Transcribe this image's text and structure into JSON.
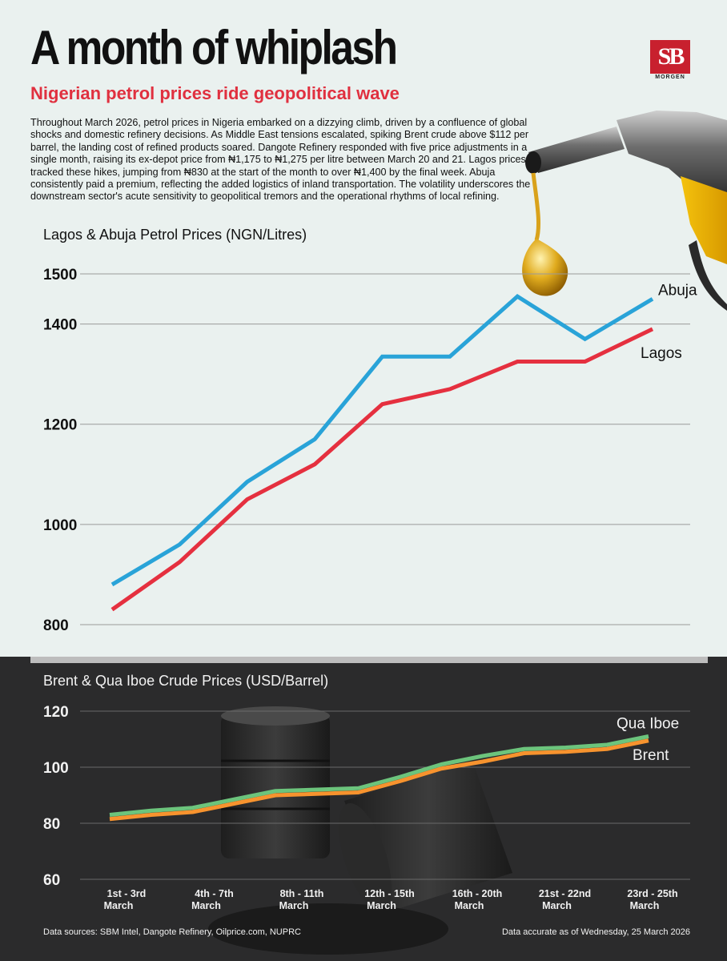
{
  "headline": "A month of whiplash",
  "subheadline": "Nigerian petrol prices ride geopolitical wave",
  "logo": {
    "initials": "SB",
    "sub": "MORGEN"
  },
  "intro": "Throughout March 2026, petrol prices in Nigeria embarked on a dizzying climb, driven by a confluence of global shocks and domestic refinery decisions. As Middle East tensions escalated, spiking Brent crude above $112 per barrel, the landing cost of refined products soared. Dangote Refinery responded with five price adjustments in a single month, raising its ex-depot price from ₦1,175 to ₦1,275 per litre between March 20 and 21. Lagos prices tracked these hikes, jumping from ₦830 at the start of the month to over ₦1,400 by the final week. Abuja consistently paid a premium, reflecting the added logistics of inland transportation. The volatility underscores the downstream sector's acute sensitivity to geopolitical tremors and the operational rhythms of local refining.",
  "footer": {
    "sources": "Data sources: SBM Intel, Dangote Refinery, Oilprice.com, NUPRC",
    "date": "Data accurate as of Wednesday, 25 March 2026"
  },
  "colors": {
    "abuja": "#29a3d8",
    "lagos": "#e5303f",
    "qua_iboe": "#6cc47c",
    "brent": "#f7932e",
    "accent": "#e0303f"
  },
  "chart_data": [
    {
      "type": "line",
      "title": "Lagos & Abuja Petrol Prices (NGN/Litres)",
      "ylim": [
        800,
        1500
      ],
      "yticks": [
        "1500",
        "1400",
        "1200",
        "1000",
        "800"
      ],
      "grid": true,
      "x": [
        1,
        2,
        3,
        4,
        5,
        6,
        7,
        8,
        9
      ],
      "series": [
        {
          "name": "Abuja",
          "values": [
            880,
            960,
            1085,
            1170,
            1335,
            1335,
            1455,
            1370,
            1450
          ]
        },
        {
          "name": "Lagos",
          "values": [
            830,
            925,
            1050,
            1120,
            1240,
            1270,
            1325,
            1325,
            1390
          ]
        }
      ]
    },
    {
      "type": "line",
      "title": "Brent & Qua Iboe Crude Prices (USD/Barrel)",
      "ylim": [
        60,
        120
      ],
      "yticks": [
        "120",
        "100",
        "80",
        "60"
      ],
      "grid": true,
      "categories": [
        "1st - 3rd March",
        "4th - 7th March",
        "8th - 11th March",
        "12th - 15th March",
        "16th - 20th March",
        "21st - 22nd March",
        "23rd - 25th March"
      ],
      "x": [
        1,
        2,
        3,
        4,
        5,
        6,
        7,
        8,
        9,
        10,
        11,
        12,
        13,
        14
      ],
      "series": [
        {
          "name": "Qua Iboe",
          "values": [
            83,
            84.5,
            85.5,
            88.5,
            91.5,
            92,
            92.5,
            96.5,
            101,
            104,
            106.5,
            107,
            108,
            111
          ]
        },
        {
          "name": "Brent",
          "values": [
            81.5,
            83,
            84,
            87,
            90,
            90.5,
            91,
            95,
            99.5,
            102,
            105,
            105.5,
            106.5,
            109.5
          ]
        }
      ]
    }
  ]
}
